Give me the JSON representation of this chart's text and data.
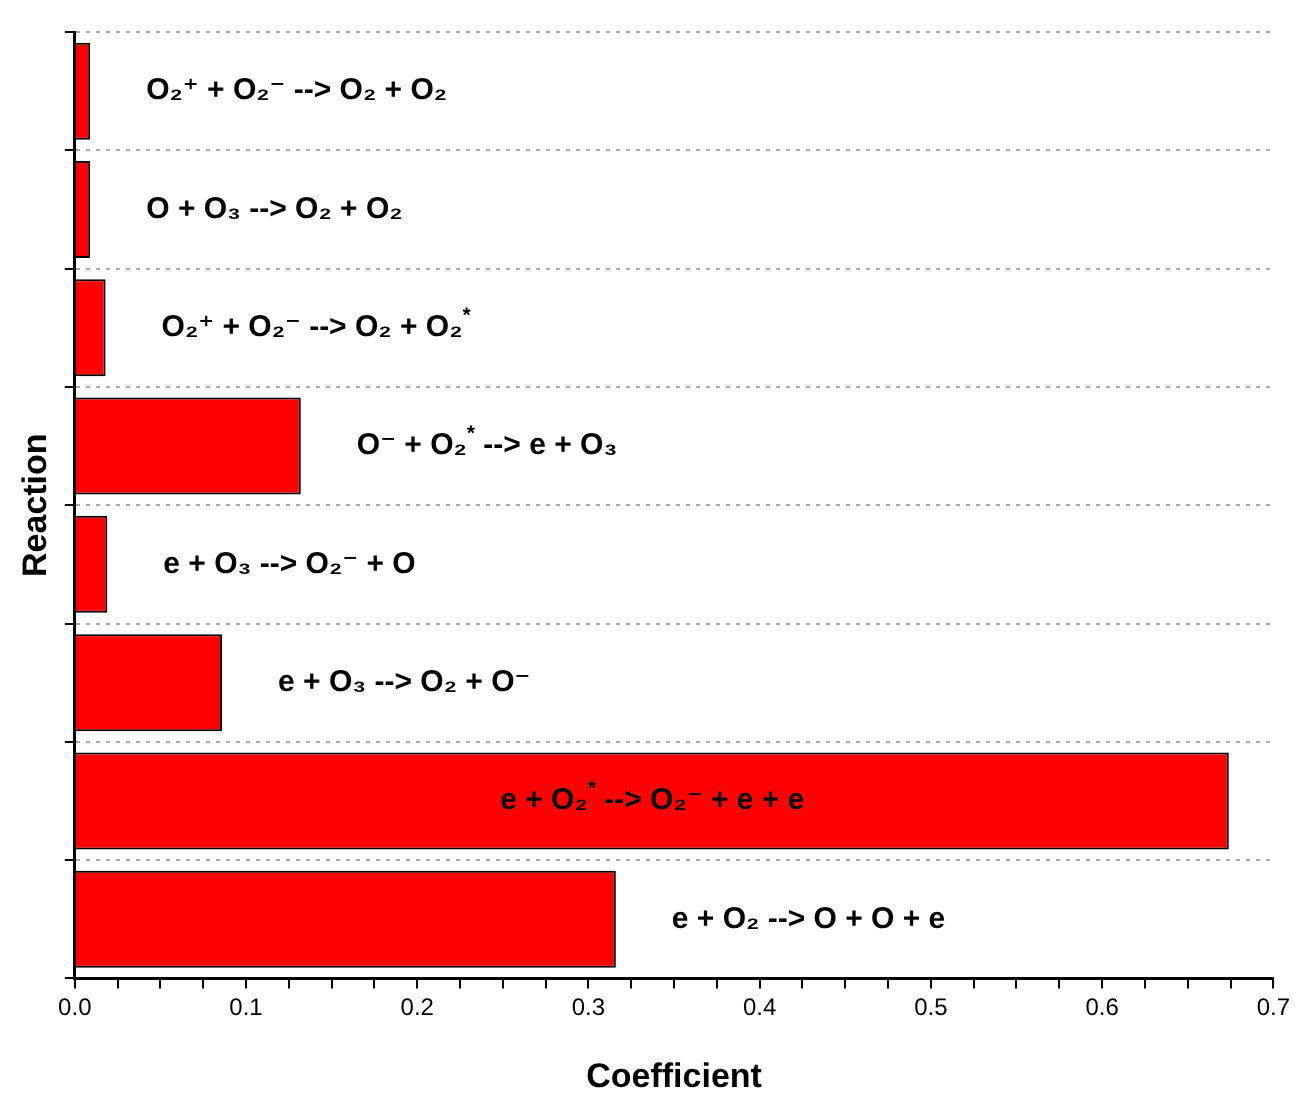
{
  "chart_data": {
    "type": "bar",
    "orientation": "horizontal",
    "xlabel": "Coefficient",
    "ylabel": "Reaction",
    "categories": [
      "O₂⁺ + O₂⁻ --> O₂ + O₂",
      "O + O₃ --> O₂ + O₂",
      "O₂⁺ + O₂⁻ --> O₂ + O₂$^{*}$",
      "O⁻ + O₂$^{*}$ --> e + O₃",
      "e + O₃ --> O₂⁻ + O",
      "e + O₃ --> O₂ + O⁻",
      "e + O₂$^{*}$ --> O₂⁻ + e + e",
      "e + O₂ --> O + O + e"
    ],
    "values": [
      0.009,
      0.009,
      0.018,
      0.132,
      0.019,
      0.086,
      0.674,
      0.316
    ],
    "color": "#ff0000",
    "xlim": [
      0,
      0.7
    ],
    "xticks": [
      {
        "value": 0,
        "label": "0.0"
      },
      {
        "value": 0.025,
        "label": null
      },
      {
        "value": 0.05,
        "label": null
      },
      {
        "value": 0.075,
        "label": null
      },
      {
        "value": 0.1,
        "label": "0.1"
      },
      {
        "value": 0.125,
        "label": null
      },
      {
        "value": 0.15,
        "label": null
      },
      {
        "value": 0.175,
        "label": null
      },
      {
        "value": 0.2,
        "label": "0.2"
      },
      {
        "value": 0.225,
        "label": null
      },
      {
        "value": 0.25,
        "label": null
      },
      {
        "value": 0.275,
        "label": null
      },
      {
        "value": 0.3,
        "label": "0.3"
      },
      {
        "value": 0.325,
        "label": null
      },
      {
        "value": 0.35,
        "label": null
      },
      {
        "value": 0.375,
        "label": null
      },
      {
        "value": 0.4,
        "label": "0.4"
      },
      {
        "value": 0.425,
        "label": null
      },
      {
        "value": 0.45,
        "label": null
      },
      {
        "value": 0.475,
        "label": null
      },
      {
        "value": 0.5,
        "label": "0.5"
      },
      {
        "value": 0.525,
        "label": null
      },
      {
        "value": 0.55,
        "label": null
      },
      {
        "value": 0.575,
        "label": null
      },
      {
        "value": 0.6,
        "label": "0.6"
      },
      {
        "value": 0.625,
        "label": null
      },
      {
        "value": 0.65,
        "label": null
      },
      {
        "value": 0.675,
        "label": null
      },
      {
        "value": 0.7,
        "label": "0.7"
      }
    ],
    "grid": "y",
    "legend": false,
    "tick_labels": "x"
  }
}
